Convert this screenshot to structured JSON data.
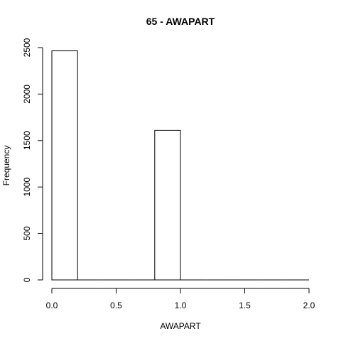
{
  "chart_data": {
    "type": "bar",
    "title": "65 - AWAPART",
    "xlabel": "AWAPART",
    "ylabel": "Frequency",
    "bins": [
      {
        "x0": 0.0,
        "x1": 0.2,
        "count": 2465
      },
      {
        "x0": 0.2,
        "x1": 0.4,
        "count": 0
      },
      {
        "x0": 0.4,
        "x1": 0.6,
        "count": 0
      },
      {
        "x0": 0.6,
        "x1": 0.8,
        "count": 0
      },
      {
        "x0": 0.8,
        "x1": 1.0,
        "count": 1610
      },
      {
        "x0": 1.0,
        "x1": 1.2,
        "count": 0
      },
      {
        "x0": 1.2,
        "x1": 1.4,
        "count": 0
      },
      {
        "x0": 1.4,
        "x1": 1.6,
        "count": 0
      },
      {
        "x0": 1.6,
        "x1": 1.8,
        "count": 0
      },
      {
        "x0": 1.8,
        "x1": 2.0,
        "count": 0
      }
    ],
    "xlim": [
      0,
      2.0
    ],
    "ylim": [
      0,
      2500
    ],
    "x_ticks": [
      {
        "value": 0.0,
        "label": "0.0"
      },
      {
        "value": 0.5,
        "label": "0.5"
      },
      {
        "value": 1.0,
        "label": "1.0"
      },
      {
        "value": 1.5,
        "label": "1.5"
      },
      {
        "value": 2.0,
        "label": "2.0"
      }
    ],
    "y_ticks": [
      {
        "value": 0,
        "label": "0"
      },
      {
        "value": 500,
        "label": "500"
      },
      {
        "value": 1000,
        "label": "1000"
      },
      {
        "value": 1500,
        "label": "1500"
      },
      {
        "value": 2000,
        "label": "2000"
      },
      {
        "value": 2500,
        "label": "2500"
      }
    ],
    "grid": false,
    "legend": "none"
  }
}
